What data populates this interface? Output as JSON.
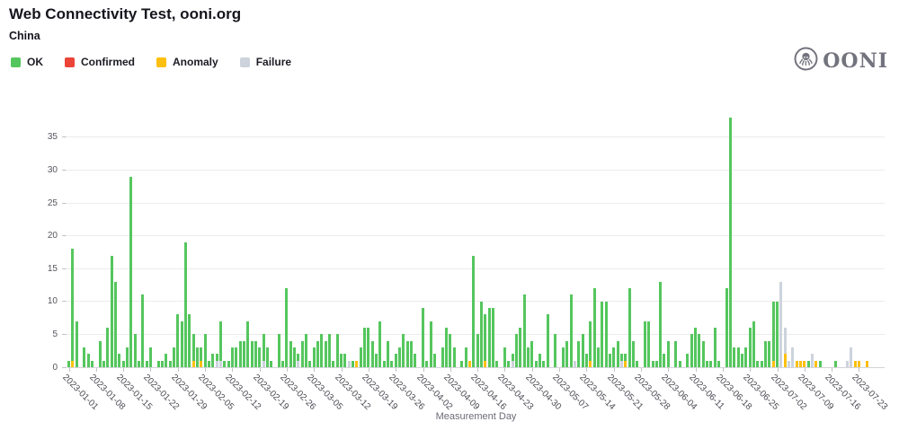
{
  "header": {
    "title": "Web Connectivity Test, ooni.org",
    "subtitle": "China"
  },
  "logo": {
    "text": "OONI"
  },
  "legend": [
    {
      "label": "OK",
      "color": "#55c65e"
    },
    {
      "label": "Confirmed",
      "color": "#ec4438"
    },
    {
      "label": "Anomaly",
      "color": "#fdc010"
    },
    {
      "label": "Failure",
      "color": "#ccd3dc"
    }
  ],
  "chart_data": {
    "type": "bar",
    "stacked": true,
    "title": "Web Connectivity Test, ooni.org",
    "subtitle": "China",
    "xlabel": "Measurement Day",
    "ylabel": "",
    "start_date": "2023-01-01",
    "ylim": [
      0,
      38.8
    ],
    "y_ticks": [
      0,
      5,
      10,
      15,
      20,
      25,
      30,
      35
    ],
    "grid": true,
    "legend_position": "top-left",
    "x_tick_labels": [
      "2023-01-01",
      "2023-01-08",
      "2023-01-15",
      "2023-01-22",
      "2023-01-29",
      "2023-02-05",
      "2023-02-12",
      "2023-02-19",
      "2023-02-26",
      "2023-03-05",
      "2023-03-12",
      "2023-03-19",
      "2023-03-26",
      "2023-04-02",
      "2023-04-09",
      "2023-04-16",
      "2023-04-23",
      "2023-04-30",
      "2023-05-07",
      "2023-05-14",
      "2023-05-21",
      "2023-05-28",
      "2023-06-04",
      "2023-06-11",
      "2023-06-18",
      "2023-06-25",
      "2023-07-02",
      "2023-07-09",
      "2023-07-16",
      "2023-07-23"
    ],
    "series_order": [
      "ok",
      "confirmed",
      "anomaly",
      "failure"
    ],
    "series_colors": {
      "ok": "#55c65e",
      "confirmed": "#ec4438",
      "anomaly": "#fdc010",
      "failure": "#ccd3dc"
    },
    "values_format": "[ok, confirmed, anomaly, failure] per day starting at start_date",
    "values": [
      [
        1,
        0,
        0,
        0
      ],
      [
        17,
        0,
        1,
        0
      ],
      [
        7,
        0,
        0,
        0
      ],
      [
        0,
        0,
        0,
        0
      ],
      [
        3,
        0,
        0,
        0
      ],
      [
        2,
        0,
        0,
        0
      ],
      [
        1,
        0,
        0,
        0
      ],
      [
        0,
        0,
        0,
        0
      ],
      [
        4,
        0,
        0,
        0
      ],
      [
        1,
        0,
        0,
        0
      ],
      [
        6,
        0,
        0,
        0
      ],
      [
        17,
        0,
        0,
        0
      ],
      [
        13,
        0,
        0,
        0
      ],
      [
        2,
        0,
        0,
        0
      ],
      [
        1,
        0,
        0,
        0
      ],
      [
        3,
        0,
        0,
        0
      ],
      [
        29,
        0,
        0,
        0
      ],
      [
        5,
        0,
        0,
        0
      ],
      [
        1,
        0,
        0,
        0
      ],
      [
        11,
        0,
        0,
        0
      ],
      [
        1,
        0,
        0,
        0
      ],
      [
        3,
        0,
        0,
        0
      ],
      [
        0,
        0,
        0,
        0
      ],
      [
        1,
        0,
        0,
        0
      ],
      [
        1,
        0,
        0,
        0
      ],
      [
        2,
        0,
        0,
        0
      ],
      [
        1,
        0,
        0,
        0
      ],
      [
        3,
        0,
        0,
        0
      ],
      [
        8,
        0,
        0,
        0
      ],
      [
        7,
        0,
        0,
        0
      ],
      [
        19,
        0,
        0,
        0
      ],
      [
        8,
        0,
        0,
        0
      ],
      [
        4,
        0,
        1,
        0
      ],
      [
        3,
        0,
        0,
        0
      ],
      [
        2,
        0,
        1,
        0
      ],
      [
        5,
        0,
        0,
        0
      ],
      [
        1,
        0,
        0,
        0
      ],
      [
        2,
        0,
        0,
        0
      ],
      [
        1,
        0,
        0,
        1
      ],
      [
        6,
        0,
        0,
        1
      ],
      [
        1,
        0,
        0,
        0
      ],
      [
        1,
        0,
        0,
        0
      ],
      [
        3,
        0,
        0,
        0
      ],
      [
        3,
        0,
        0,
        0
      ],
      [
        4,
        0,
        0,
        0
      ],
      [
        4,
        0,
        0,
        0
      ],
      [
        7,
        0,
        0,
        0
      ],
      [
        4,
        0,
        0,
        0
      ],
      [
        4,
        0,
        0,
        0
      ],
      [
        3,
        0,
        0,
        0
      ],
      [
        4,
        0,
        0,
        1
      ],
      [
        3,
        0,
        0,
        0
      ],
      [
        1,
        0,
        0,
        0
      ],
      [
        0,
        0,
        0,
        0
      ],
      [
        5,
        0,
        0,
        0
      ],
      [
        1,
        0,
        0,
        0
      ],
      [
        12,
        0,
        0,
        0
      ],
      [
        4,
        0,
        0,
        0
      ],
      [
        3,
        0,
        0,
        0
      ],
      [
        1,
        0,
        0,
        1
      ],
      [
        4,
        0,
        0,
        0
      ],
      [
        5,
        0,
        0,
        0
      ],
      [
        1,
        0,
        0,
        0
      ],
      [
        3,
        0,
        0,
        0
      ],
      [
        4,
        0,
        0,
        0
      ],
      [
        5,
        0,
        0,
        0
      ],
      [
        4,
        0,
        0,
        0
      ],
      [
        5,
        0,
        0,
        0
      ],
      [
        1,
        0,
        0,
        0
      ],
      [
        5,
        0,
        0,
        0
      ],
      [
        2,
        0,
        0,
        0
      ],
      [
        2,
        0,
        0,
        0
      ],
      [
        0,
        0,
        0,
        1
      ],
      [
        1,
        0,
        0,
        0
      ],
      [
        0,
        0,
        1,
        0
      ],
      [
        3,
        0,
        0,
        0
      ],
      [
        6,
        0,
        0,
        0
      ],
      [
        6,
        0,
        0,
        0
      ],
      [
        4,
        0,
        0,
        0
      ],
      [
        2,
        0,
        0,
        0
      ],
      [
        7,
        0,
        0,
        0
      ],
      [
        1,
        0,
        0,
        0
      ],
      [
        4,
        0,
        0,
        0
      ],
      [
        1,
        0,
        0,
        0
      ],
      [
        2,
        0,
        0,
        0
      ],
      [
        3,
        0,
        0,
        0
      ],
      [
        5,
        0,
        0,
        0
      ],
      [
        4,
        0,
        0,
        0
      ],
      [
        4,
        0,
        0,
        0
      ],
      [
        2,
        0,
        0,
        0
      ],
      [
        0,
        0,
        0,
        0
      ],
      [
        9,
        0,
        0,
        0
      ],
      [
        1,
        0,
        0,
        0
      ],
      [
        7,
        0,
        0,
        0
      ],
      [
        2,
        0,
        0,
        0
      ],
      [
        0,
        0,
        0,
        0
      ],
      [
        3,
        0,
        0,
        0
      ],
      [
        6,
        0,
        0,
        0
      ],
      [
        5,
        0,
        0,
        0
      ],
      [
        3,
        0,
        0,
        0
      ],
      [
        0,
        0,
        0,
        0
      ],
      [
        1,
        0,
        0,
        0
      ],
      [
        3,
        0,
        0,
        0
      ],
      [
        0,
        0,
        1,
        0
      ],
      [
        17,
        0,
        0,
        0
      ],
      [
        5,
        0,
        0,
        0
      ],
      [
        10,
        0,
        0,
        0
      ],
      [
        7,
        0,
        1,
        0
      ],
      [
        9,
        0,
        0,
        0
      ],
      [
        9,
        0,
        0,
        0
      ],
      [
        1,
        0,
        0,
        0
      ],
      [
        0,
        0,
        0,
        0
      ],
      [
        3,
        0,
        0,
        0
      ],
      [
        1,
        0,
        0,
        0
      ],
      [
        1,
        0,
        0,
        1
      ],
      [
        5,
        0,
        0,
        0
      ],
      [
        6,
        0,
        0,
        0
      ],
      [
        11,
        0,
        0,
        0
      ],
      [
        3,
        0,
        0,
        0
      ],
      [
        4,
        0,
        0,
        0
      ],
      [
        1,
        0,
        0,
        0
      ],
      [
        2,
        0,
        0,
        0
      ],
      [
        1,
        0,
        0,
        0
      ],
      [
        8,
        0,
        0,
        0
      ],
      [
        0,
        0,
        0,
        0
      ],
      [
        5,
        0,
        0,
        0
      ],
      [
        0,
        0,
        0,
        0
      ],
      [
        3,
        0,
        0,
        0
      ],
      [
        4,
        0,
        0,
        0
      ],
      [
        11,
        0,
        0,
        0
      ],
      [
        0,
        0,
        0,
        1
      ],
      [
        4,
        0,
        0,
        0
      ],
      [
        5,
        0,
        0,
        0
      ],
      [
        2,
        0,
        0,
        0
      ],
      [
        6,
        0,
        1,
        0
      ],
      [
        12,
        0,
        0,
        0
      ],
      [
        3,
        0,
        0,
        0
      ],
      [
        10,
        0,
        0,
        0
      ],
      [
        10,
        0,
        0,
        0
      ],
      [
        2,
        0,
        0,
        0
      ],
      [
        3,
        0,
        0,
        0
      ],
      [
        4,
        0,
        0,
        0
      ],
      [
        1,
        0,
        0,
        1
      ],
      [
        1,
        0,
        1,
        0
      ],
      [
        12,
        0,
        0,
        0
      ],
      [
        4,
        0,
        0,
        0
      ],
      [
        1,
        0,
        0,
        0
      ],
      [
        0,
        0,
        0,
        0
      ],
      [
        7,
        0,
        0,
        0
      ],
      [
        7,
        0,
        0,
        0
      ],
      [
        1,
        0,
        0,
        0
      ],
      [
        1,
        0,
        0,
        0
      ],
      [
        13,
        0,
        0,
        0
      ],
      [
        2,
        0,
        0,
        0
      ],
      [
        4,
        0,
        0,
        0
      ],
      [
        0,
        0,
        0,
        0
      ],
      [
        4,
        0,
        0,
        0
      ],
      [
        1,
        0,
        0,
        0
      ],
      [
        0,
        0,
        0,
        0
      ],
      [
        2,
        0,
        0,
        0
      ],
      [
        5,
        0,
        0,
        0
      ],
      [
        6,
        0,
        0,
        0
      ],
      [
        5,
        0,
        0,
        0
      ],
      [
        4,
        0,
        0,
        0
      ],
      [
        1,
        0,
        0,
        0
      ],
      [
        1,
        0,
        0,
        0
      ],
      [
        6,
        0,
        0,
        0
      ],
      [
        1,
        0,
        0,
        0
      ],
      [
        0,
        0,
        0,
        0
      ],
      [
        12,
        0,
        0,
        0
      ],
      [
        38,
        0,
        0,
        0
      ],
      [
        3,
        0,
        0,
        0
      ],
      [
        3,
        0,
        0,
        0
      ],
      [
        2,
        0,
        0,
        0
      ],
      [
        3,
        0,
        0,
        0
      ],
      [
        6,
        0,
        0,
        0
      ],
      [
        7,
        0,
        0,
        0
      ],
      [
        1,
        0,
        0,
        0
      ],
      [
        1,
        0,
        0,
        0
      ],
      [
        4,
        0,
        0,
        0
      ],
      [
        4,
        0,
        0,
        0
      ],
      [
        9,
        0,
        1,
        0
      ],
      [
        10,
        0,
        0,
        0
      ],
      [
        0,
        0,
        0,
        13
      ],
      [
        0,
        0,
        2,
        4
      ],
      [
        0,
        0,
        0,
        1
      ],
      [
        0,
        0,
        0,
        3
      ],
      [
        0,
        0,
        1,
        0
      ],
      [
        0,
        0,
        1,
        0
      ],
      [
        0,
        0,
        1,
        0
      ],
      [
        1,
        0,
        0,
        0
      ],
      [
        0,
        0,
        0,
        2
      ],
      [
        0,
        0,
        1,
        0
      ],
      [
        1,
        0,
        0,
        0
      ],
      [
        0,
        0,
        0,
        0
      ],
      [
        0,
        0,
        0,
        0
      ],
      [
        0,
        0,
        0,
        0
      ],
      [
        1,
        0,
        0,
        0
      ],
      [
        0,
        0,
        0,
        0
      ],
      [
        0,
        0,
        0,
        0
      ],
      [
        0,
        0,
        0,
        1
      ],
      [
        0,
        0,
        0,
        3
      ],
      [
        0,
        0,
        1,
        0
      ],
      [
        0,
        0,
        1,
        0
      ],
      [
        0,
        0,
        0,
        0
      ],
      [
        0,
        0,
        1,
        0
      ]
    ]
  }
}
